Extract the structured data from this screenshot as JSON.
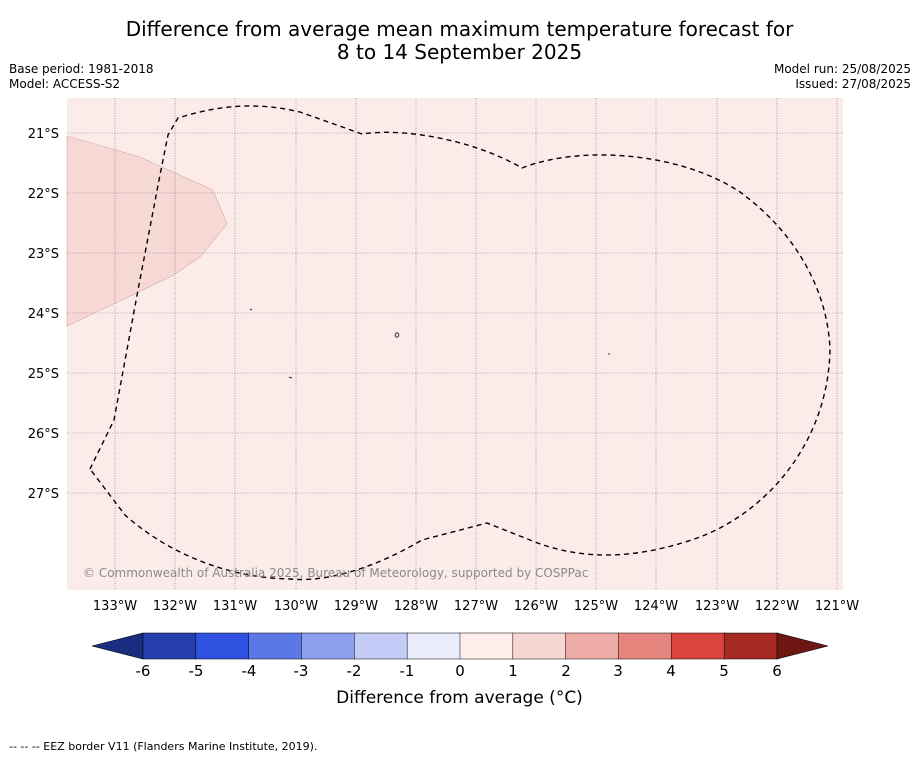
{
  "title_line1": "Difference from average mean maximum temperature forecast for",
  "title_line2": "8 to 14 September 2025",
  "left_meta": {
    "base_period": "Base period: 1981-2018",
    "model": "Model: ACCESS-S2"
  },
  "right_meta": {
    "model_run": "Model run: 25/08/2025",
    "issued": "Issued: 27/08/2025"
  },
  "copyright": "© Commonwealth of Australia 2025, Bureau of Meteorology, supported by COSPPac",
  "lat_labels": [
    "21°S",
    "22°S",
    "23°S",
    "24°S",
    "25°S",
    "26°S",
    "27°S"
  ],
  "lon_labels": [
    "133°W",
    "132°W",
    "131°W",
    "130°W",
    "129°W",
    "128°W",
    "127°W",
    "126°W",
    "125°W",
    "124°W",
    "123°W",
    "122°W",
    "121°W"
  ],
  "colorbar": {
    "ticks": [
      "-6",
      "-5",
      "-4",
      "-3",
      "-2",
      "-1",
      "0",
      "1",
      "2",
      "3",
      "4",
      "5",
      "6"
    ],
    "colors": [
      "#1a2d80",
      "#263fae",
      "#2f52e0",
      "#5b78e6",
      "#8a9fee",
      "#c3cbf6",
      "#e9ecfb",
      "#fdeeec",
      "#f6d5d2",
      "#eeaca7",
      "#e6857e",
      "#d9453c",
      "#a62a23",
      "#6e1712"
    ],
    "label": "Difference from average (°C)",
    "label_text": "Difference from average (",
    "label_unit": "°C)"
  },
  "legend_footer": "--  --  -- EEZ border V11 (Flanders Marine Institute, 2019).",
  "map": {
    "background_class": "0 to 1",
    "region_class": "1 to 2"
  }
}
